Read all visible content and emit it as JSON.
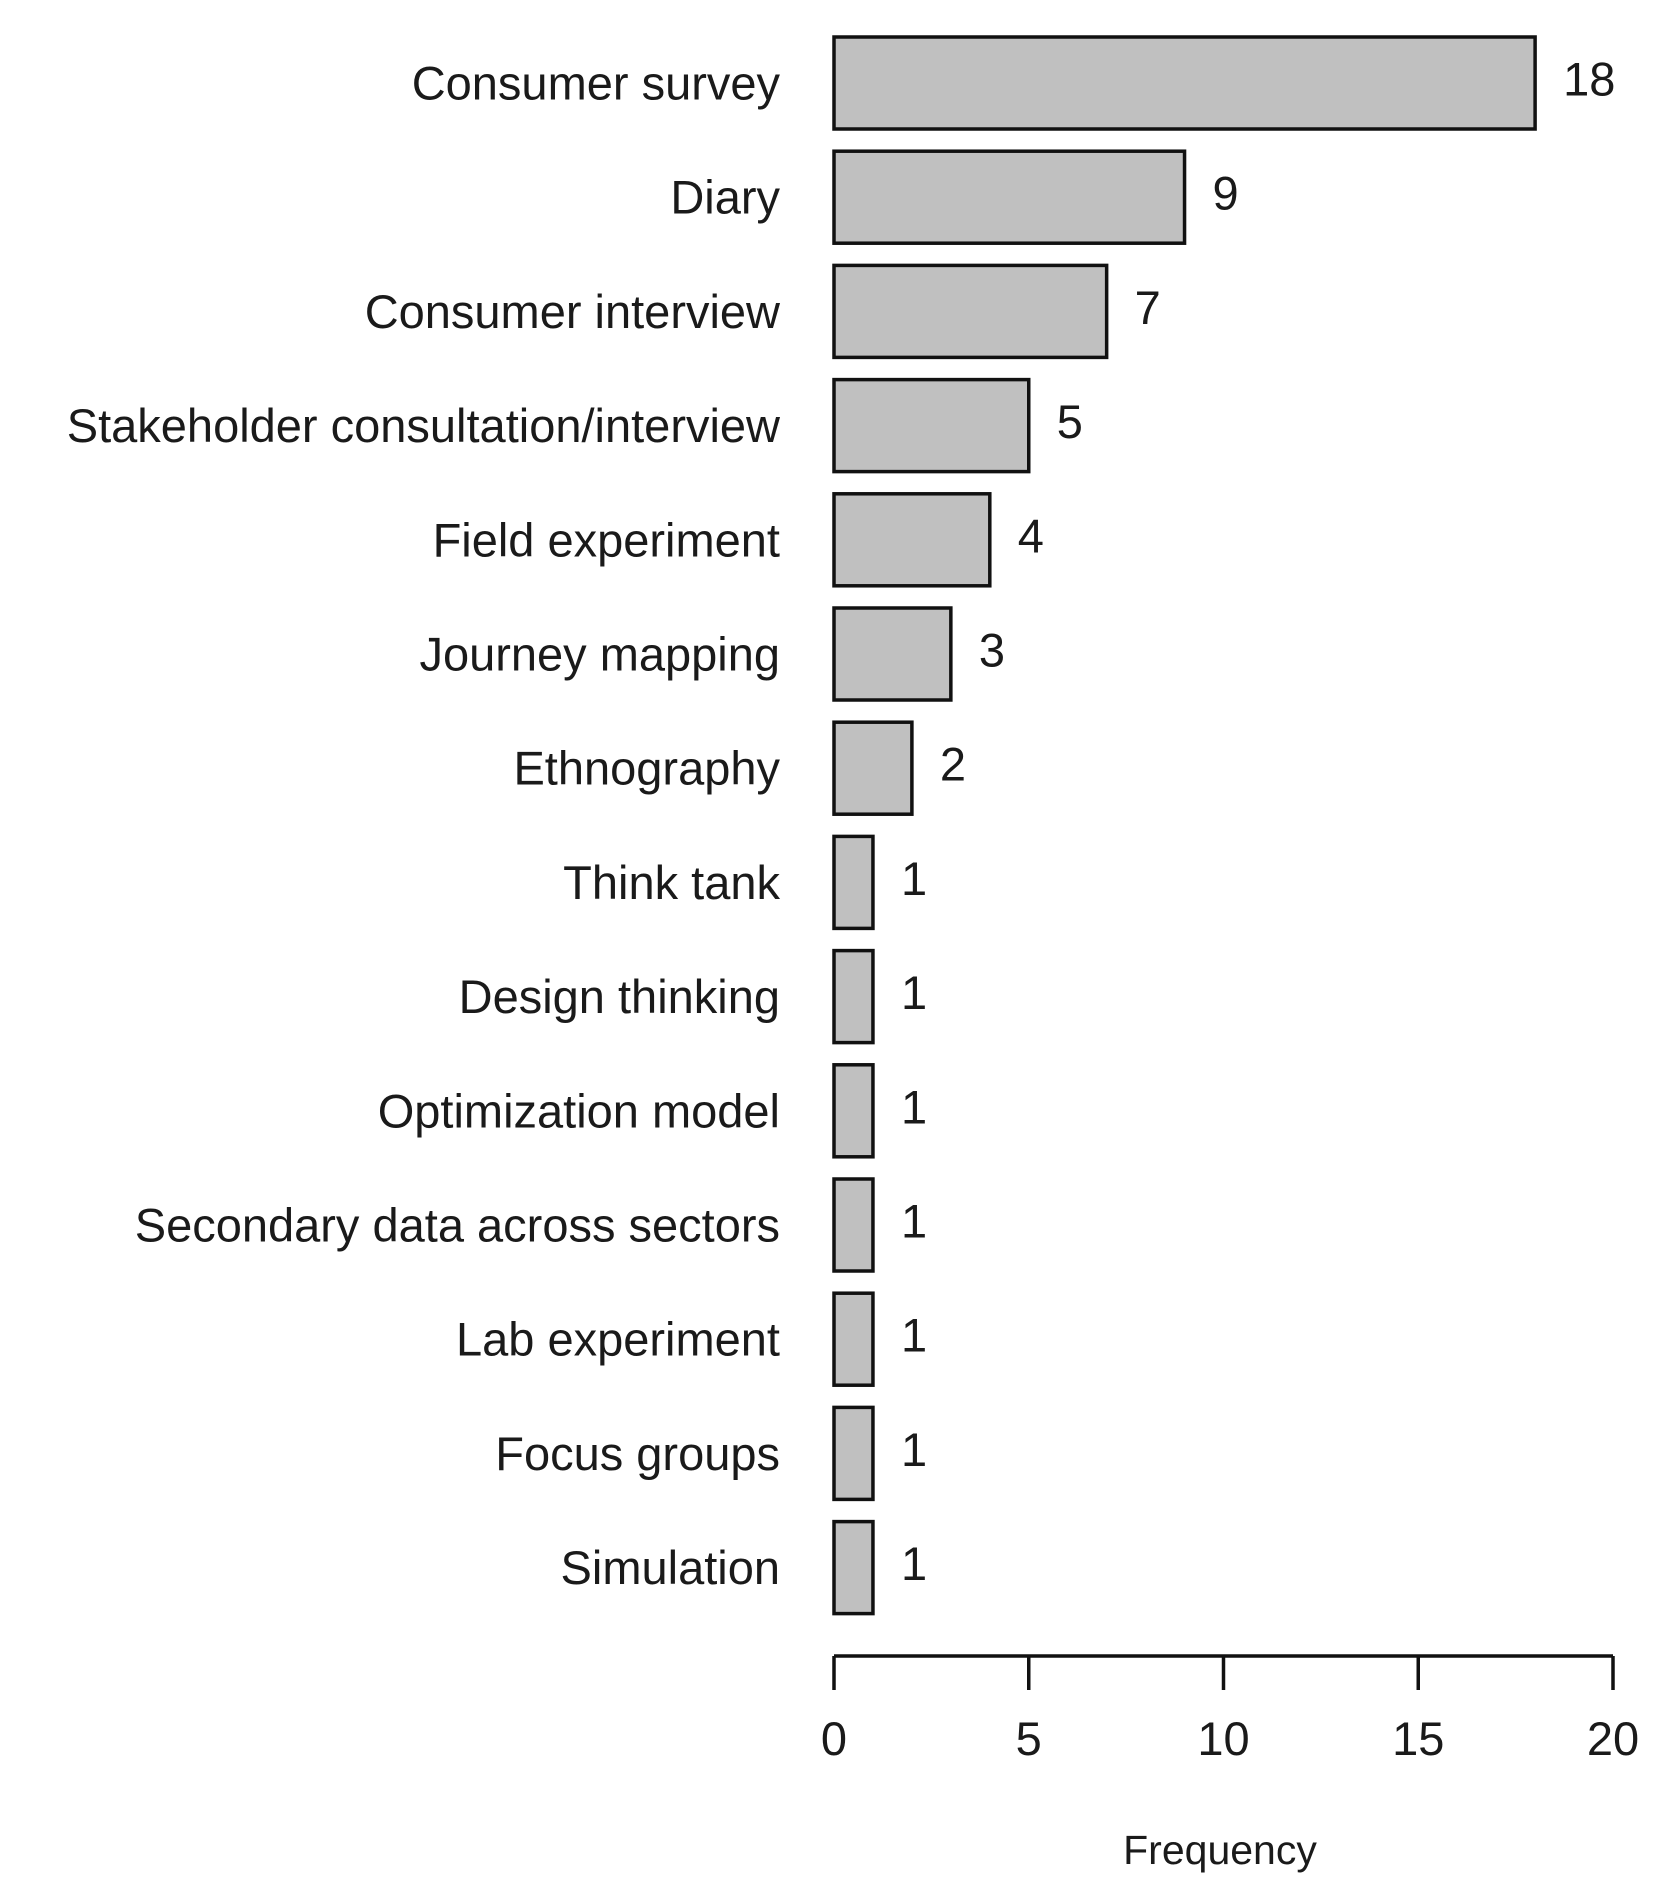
{
  "chart_data": {
    "type": "bar",
    "orientation": "horizontal",
    "categories": [
      "Consumer survey",
      "Diary",
      "Consumer interview",
      "Stakeholder consultation/interview",
      "Field experiment",
      "Journey mapping",
      "Ethnography",
      "Think tank",
      "Design thinking",
      "Optimization model",
      "Secondary data across sectors",
      "Lab experiment",
      "Focus groups",
      "Simulation"
    ],
    "values": [
      18,
      9,
      7,
      5,
      4,
      3,
      2,
      1,
      1,
      1,
      1,
      1,
      1,
      1
    ],
    "xlabel": "Frequency",
    "ylabel": "",
    "title": "",
    "xlim": [
      0,
      20
    ],
    "xticks": [
      0,
      5,
      10,
      15,
      20
    ],
    "grid": false,
    "legend": "none",
    "bar_color": "#c0c0c0",
    "edge_color": "#111111"
  }
}
